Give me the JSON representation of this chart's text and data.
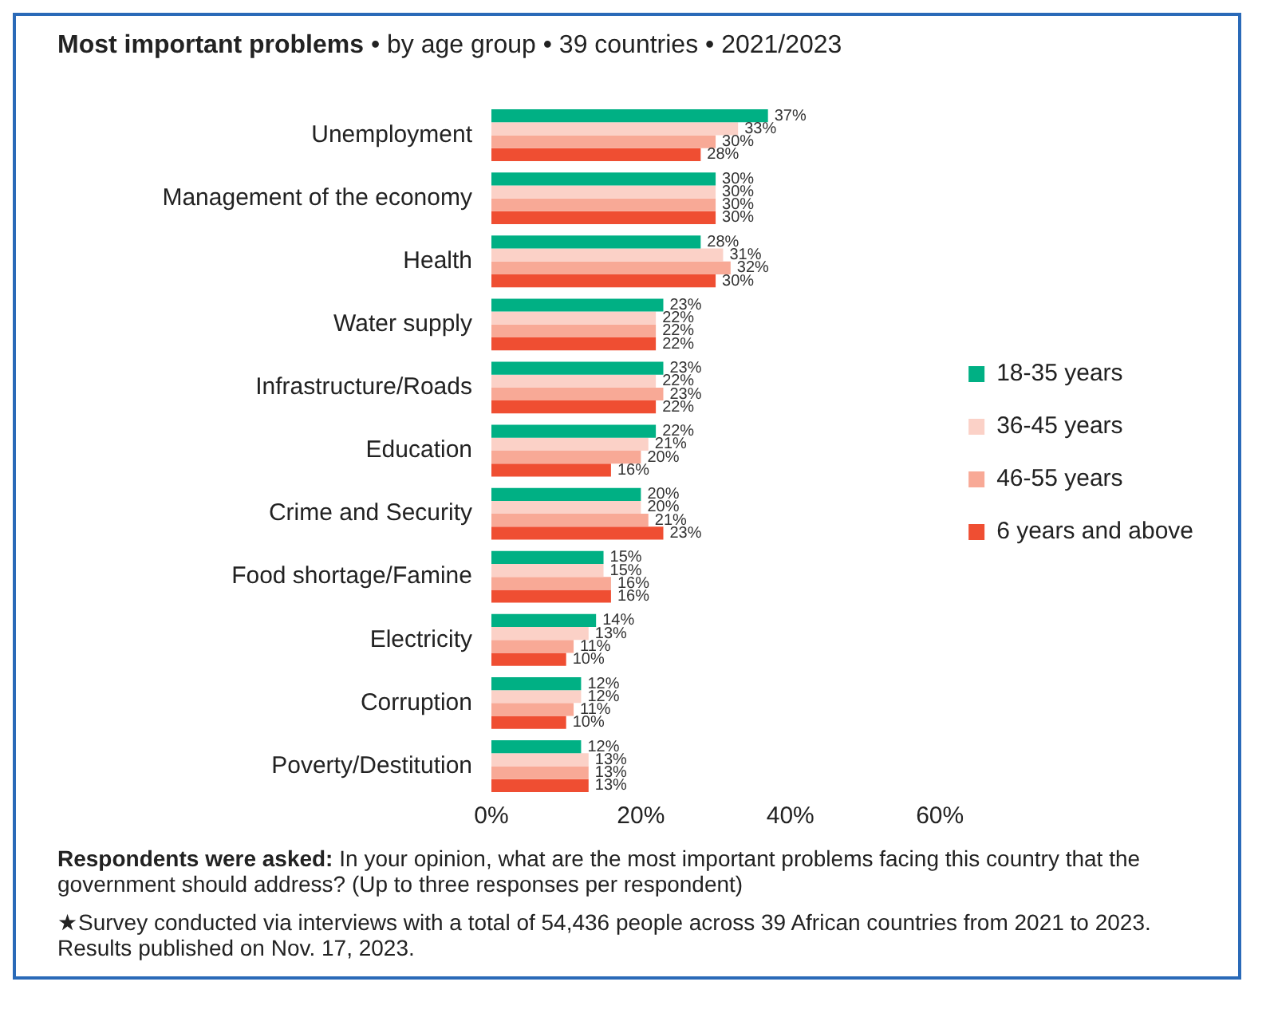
{
  "chart_data": {
    "type": "bar",
    "orientation": "horizontal",
    "title": "Most important problems",
    "subtitle": "• by age group • 39 countries • 2021/2023",
    "categories": [
      "Unemployment",
      "Management of the economy",
      "Health",
      "Water supply",
      "Infrastructure/Roads",
      "Education",
      "Crime and Security",
      "Food shortage/Famine",
      "Electricity",
      "Corruption",
      "Poverty/Destitution"
    ],
    "series": [
      {
        "name": "18-35 years",
        "color": "#00b084",
        "values": [
          37,
          30,
          28,
          23,
          23,
          22,
          20,
          15,
          14,
          12,
          12
        ],
        "value_labels": [
          "37%",
          "30%",
          "28%",
          "23%",
          "23%",
          "22%",
          "20%",
          "15%",
          "14%",
          "12%",
          "12%"
        ]
      },
      {
        "name": "36-45 years",
        "color": "#fbd1c7",
        "values": [
          33,
          30,
          31,
          22,
          22,
          21,
          20,
          15,
          13,
          12,
          13
        ],
        "value_labels": [
          "33%",
          "30%",
          "31%",
          "22%",
          "22%",
          "21%",
          "20%",
          "15%",
          "13%",
          "12%",
          "13%"
        ]
      },
      {
        "name": "46-55 years",
        "color": "#f8a996",
        "values": [
          30,
          30,
          32,
          22,
          23,
          20,
          21,
          16,
          11,
          11,
          13
        ],
        "value_labels": [
          "30%",
          "30%",
          "32%",
          "22%",
          "23%",
          "20%",
          "21%",
          "16%",
          "11%",
          "11%",
          "13%"
        ]
      },
      {
        "name": "6 years and above",
        "color": "#ef4e32",
        "values": [
          28,
          30,
          30,
          22,
          22,
          16,
          23,
          16,
          10,
          10,
          13
        ],
        "value_labels": [
          "28%",
          "30%",
          "30%",
          "22%",
          "22%",
          "16%",
          "23%",
          "16%",
          "10%",
          "10%",
          "13%"
        ]
      }
    ],
    "xlim": [
      0,
      60
    ],
    "xticks": [
      {
        "value": 0,
        "label": "0%"
      },
      {
        "value": 20,
        "label": "20%"
      },
      {
        "value": 40,
        "label": "40%"
      },
      {
        "value": 60,
        "label": "60%"
      }
    ],
    "grid": false,
    "legend": "right",
    "annotations": [
      "Respondents were asked: In your opinion, what are the most important problems facing this country that the government should address? (Up to three responses per respondent)",
      "★Survey conducted via interviews with a total of 54,436 people across 39 African countries from 2021 to 2023. Results published on Nov. 17, 2023."
    ]
  }
}
